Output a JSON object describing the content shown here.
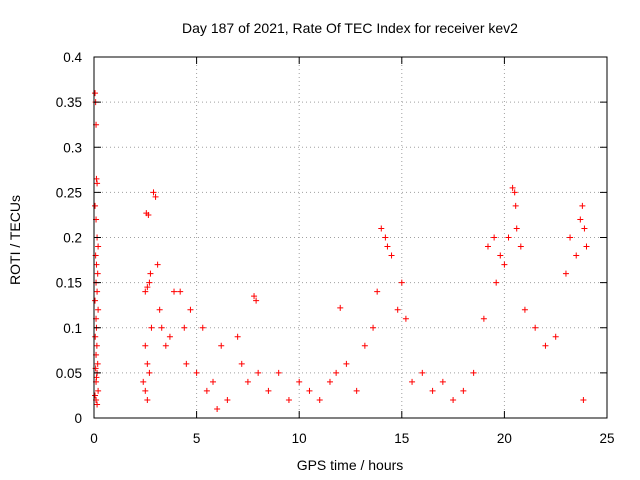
{
  "chart_data": {
    "type": "scatter",
    "title": "Day 187 of 2021, Rate Of TEC Index for receiver kev2",
    "xlabel": "GPS time / hours",
    "ylabel": "ROTI / TECUs",
    "xlim": [
      0,
      25
    ],
    "ylim": [
      0,
      0.4
    ],
    "xticks": [
      "0",
      "5",
      "10",
      "15",
      "20",
      "25"
    ],
    "yticks": [
      "0",
      "0.05",
      "0.1",
      "0.15",
      "0.2",
      "0.25",
      "0.3",
      "0.35",
      "0.4"
    ],
    "grid": true,
    "marker": "plus",
    "color": "#ff0000",
    "series": [
      {
        "x": [
          0.05,
          0.08,
          0.1,
          0.12,
          0.15,
          0.05,
          0.1,
          0.15,
          0.2,
          0.08,
          0.12,
          0.18,
          0.1,
          0.15,
          0.05,
          0.2,
          0.1,
          0.12,
          0.06,
          0.14,
          0.1,
          0.18,
          0.08,
          0.15,
          0.12,
          0.1,
          0.2,
          0.05,
          0.1,
          0.15,
          2.4,
          2.5,
          2.6,
          2.7,
          2.8,
          2.5,
          2.6,
          2.7,
          2.9,
          3.0,
          2.5,
          2.6,
          2.55,
          2.65,
          2.75,
          3.1,
          3.2,
          3.3,
          3.5,
          3.7,
          3.9,
          4.2,
          4.4,
          4.5,
          4.7,
          5.0,
          5.3,
          5.5,
          5.8,
          6.0,
          6.2,
          6.5,
          7.0,
          7.2,
          7.5,
          7.8,
          7.9,
          8.0,
          8.5,
          9.0,
          9.5,
          10.0,
          10.5,
          11.0,
          11.5,
          11.8,
          12.0,
          12.3,
          12.8,
          13.2,
          13.6,
          13.8,
          14.0,
          14.2,
          14.3,
          14.5,
          14.8,
          15.0,
          15.2,
          15.5,
          16.0,
          16.5,
          17.0,
          17.5,
          18.0,
          18.5,
          19.0,
          19.2,
          19.5,
          19.6,
          19.8,
          20.0,
          20.2,
          20.4,
          20.5,
          20.55,
          20.6,
          20.8,
          21.0,
          21.5,
          22.0,
          22.5,
          23.0,
          23.2,
          23.5,
          23.7,
          23.8,
          23.9,
          24.0,
          23.85
        ],
        "y": [
          0.36,
          0.35,
          0.325,
          0.265,
          0.26,
          0.235,
          0.22,
          0.2,
          0.19,
          0.18,
          0.17,
          0.16,
          0.15,
          0.14,
          0.13,
          0.12,
          0.11,
          0.1,
          0.09,
          0.08,
          0.07,
          0.06,
          0.055,
          0.05,
          0.045,
          0.04,
          0.03,
          0.025,
          0.02,
          0.015,
          0.04,
          0.14,
          0.145,
          0.15,
          0.1,
          0.08,
          0.06,
          0.05,
          0.25,
          0.245,
          0.03,
          0.02,
          0.227,
          0.225,
          0.16,
          0.17,
          0.12,
          0.1,
          0.08,
          0.09,
          0.14,
          0.14,
          0.1,
          0.06,
          0.12,
          0.05,
          0.1,
          0.03,
          0.04,
          0.01,
          0.08,
          0.02,
          0.09,
          0.06,
          0.04,
          0.135,
          0.13,
          0.05,
          0.03,
          0.05,
          0.02,
          0.04,
          0.03,
          0.02,
          0.04,
          0.05,
          0.122,
          0.06,
          0.03,
          0.08,
          0.1,
          0.14,
          0.21,
          0.2,
          0.19,
          0.18,
          0.12,
          0.15,
          0.11,
          0.04,
          0.05,
          0.03,
          0.04,
          0.02,
          0.03,
          0.05,
          0.11,
          0.19,
          0.2,
          0.15,
          0.18,
          0.17,
          0.2,
          0.255,
          0.25,
          0.235,
          0.21,
          0.19,
          0.12,
          0.1,
          0.08,
          0.09,
          0.16,
          0.2,
          0.18,
          0.22,
          0.235,
          0.21,
          0.19,
          0.02
        ]
      }
    ]
  }
}
